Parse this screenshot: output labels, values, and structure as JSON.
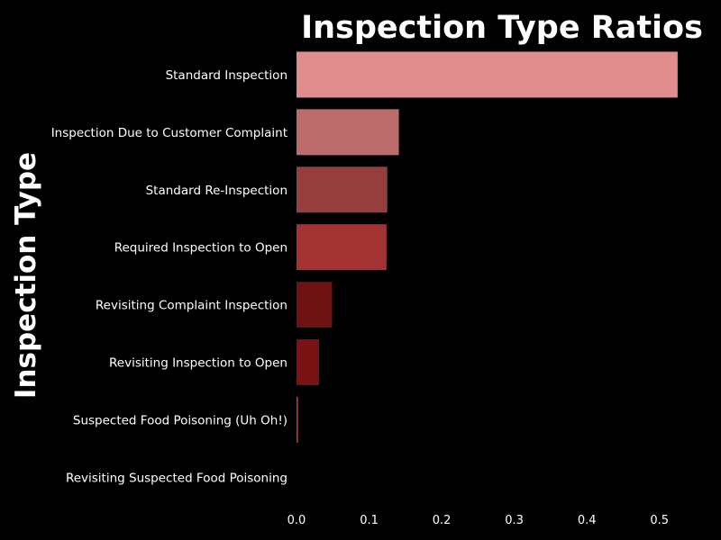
{
  "chart_data": {
    "type": "bar",
    "orientation": "horizontal",
    "title": "Inspection Type Ratios",
    "xlabel": "",
    "ylabel": "Inspection Type",
    "categories": [
      "Standard Inspection",
      "Inspection Due to Customer Complaint",
      "Standard Re-Inspection",
      "Required Inspection to Open",
      "Revisiting Complaint Inspection",
      "Revisiting Inspection to Open",
      "Suspected Food Poisoning (Uh Oh!)",
      "Revisiting Suspected Food Poisoning"
    ],
    "values": [
      0.525,
      0.141,
      0.125,
      0.124,
      0.049,
      0.031,
      0.002,
      0.0
    ],
    "colors": [
      "#e18d8f",
      "#bd6c6e",
      "#963d3d",
      "#a33333",
      "#6e1111",
      "#7a1313",
      "#c33333",
      "#d44444"
    ],
    "xlim": [
      0,
      0.55
    ],
    "xticks": [
      "0.0",
      "0.1",
      "0.2",
      "0.3",
      "0.4",
      "0.5"
    ],
    "grid": false,
    "background": "#000000",
    "text_color": "#ffffff"
  }
}
